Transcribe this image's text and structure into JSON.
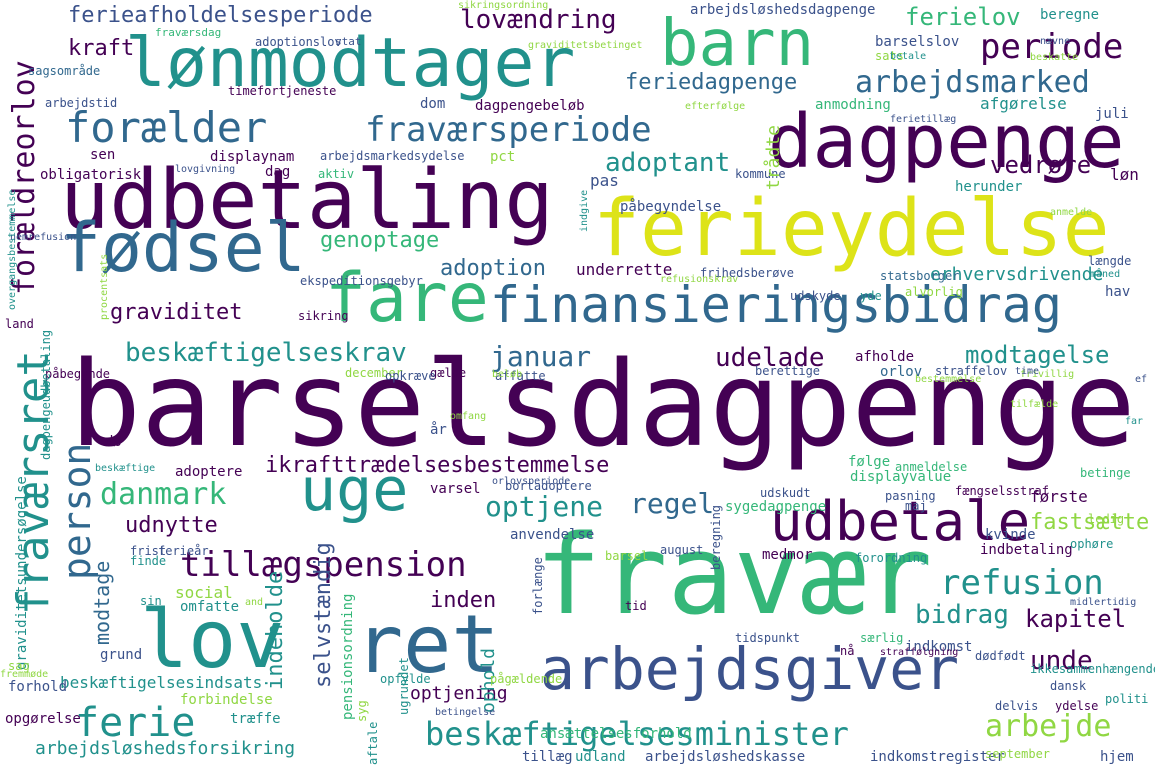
{
  "palette": {
    "dark_purple": "#440154",
    "indigo": "#3b528b",
    "blue": "#31688e",
    "teal": "#21918c",
    "green": "#35b779",
    "lime": "#90d743",
    "yellow": "#dde318"
  },
  "words": [
    "barselsdagpenge",
    "fravær",
    "ferieydelse",
    "udbetaling",
    "dagpenge",
    "lønmodtager",
    "barn",
    "fødsel",
    "fare",
    "finansieringsbidrag",
    "uge",
    "udbetale",
    "ret",
    "lov",
    "arbejdsgiver",
    "fraværsret",
    "forældreorlov",
    "person",
    "forælder",
    "fraværsperiode",
    "periode",
    "arbejdsmarked",
    "ferieafholdelsesperiode",
    "lovændring",
    "kraft",
    "feriedagpenge",
    "adoptant",
    "beskæftigelseskrav",
    "januar",
    "tillægspension",
    "refusion",
    "danmark",
    "ferie",
    "beskæftigelsesminister",
    "arbejde",
    "ikrafttrædelsesbestemmelse",
    "optjene",
    "regel",
    "graviditet",
    "genoptage",
    "adoption",
    "udelade",
    "modtagelse",
    "vedrøre",
    "fastsætte",
    "bidrag",
    "kapitel",
    "unde",
    "inden",
    "udnytte",
    "modtage",
    "selvstændig",
    "indeholde",
    "arbejdsløshedsforsikring",
    "beskæftigelsesindsats",
    "optjening",
    "ophold",
    "ferielov",
    "arbejdsløshedsdagpenge",
    "beregne",
    "barselslov",
    "sats",
    "afgørelse",
    "anmodning",
    "underrette",
    "erhvervsdrivende",
    "statsborger",
    "frihedsberøve",
    "refusionskrav",
    "displayvalue",
    "følge",
    "første",
    "udskudt",
    "sygedagpenge",
    "afholde",
    "orlov",
    "displaynam",
    "pct",
    "dom",
    "dagpengebeløb",
    "timefortjeneste",
    "arbejdsmarkedsydelse",
    "sen",
    "obligatorisk",
    "lovgivning",
    "dag",
    "aktiv",
    "pas",
    "kommune",
    "påbegyndelse",
    "herunder",
    "løn",
    "juli",
    "trådte",
    "social",
    "omfatte",
    "anvendelse",
    "adoptere",
    "varsel",
    "bortadoptere",
    "medmor",
    "august",
    "kvinde",
    "indbetaling",
    "indkomst",
    "tillæg",
    "udland",
    "arbejdsløshedskasse",
    "indkomstregister",
    "september",
    "hjem",
    "aftale",
    "ansættelsesforhold",
    "pensionsordning",
    "graviditetsundersøgelse",
    "fremmøde",
    "grund",
    "forhold",
    "opgørelse",
    "træffe",
    "forbindelse",
    "sag",
    "land",
    "sikring",
    "fraværsdag",
    "adoptionslov",
    "stat",
    "sagsområde",
    "arbejdstid",
    "nemrefusion",
    "overgangsbestemmelse",
    "procentsats",
    "ekspeditionsgebyr",
    "påbegynde",
    "dagpengeudbetaling",
    "december",
    "gælde",
    "affatte",
    "betinge",
    "dødfødt",
    "ydelse",
    "delvis",
    "ikkesammenhængende",
    "dansk",
    "politi",
    "indgive",
    "udskyde",
    "yde",
    "alvorlig",
    "hav",
    "måned",
    "længde",
    "berettige",
    "straffelov",
    "pasning",
    "maj",
    "fængselsstraf",
    "ledig",
    "ophøre",
    "forordning",
    "barsel",
    "beregning",
    "frist",
    "ferieår",
    "finde",
    "sin",
    "and",
    "opfylde",
    "forlænge",
    "pågældende",
    "tidspunkt",
    "nå",
    "særlig",
    "midlertidig",
    "tid",
    "straffølgning",
    "syg",
    "ugrundet",
    "betingelse",
    "beskæftige",
    "orlovsperiode",
    "anmeldelse",
    "bestemmelse",
    "opkræve",
    "dø",
    "år",
    "omfang",
    "far",
    "ef",
    "frivillig",
    "efterfølge",
    "ferietillæg",
    "betale",
    "beskatte",
    "sikringsordning",
    "graviditetsbetinget",
    "nævne",
    "anmelde",
    "tilfælde",
    "beløb",
    "time"
  ]
}
